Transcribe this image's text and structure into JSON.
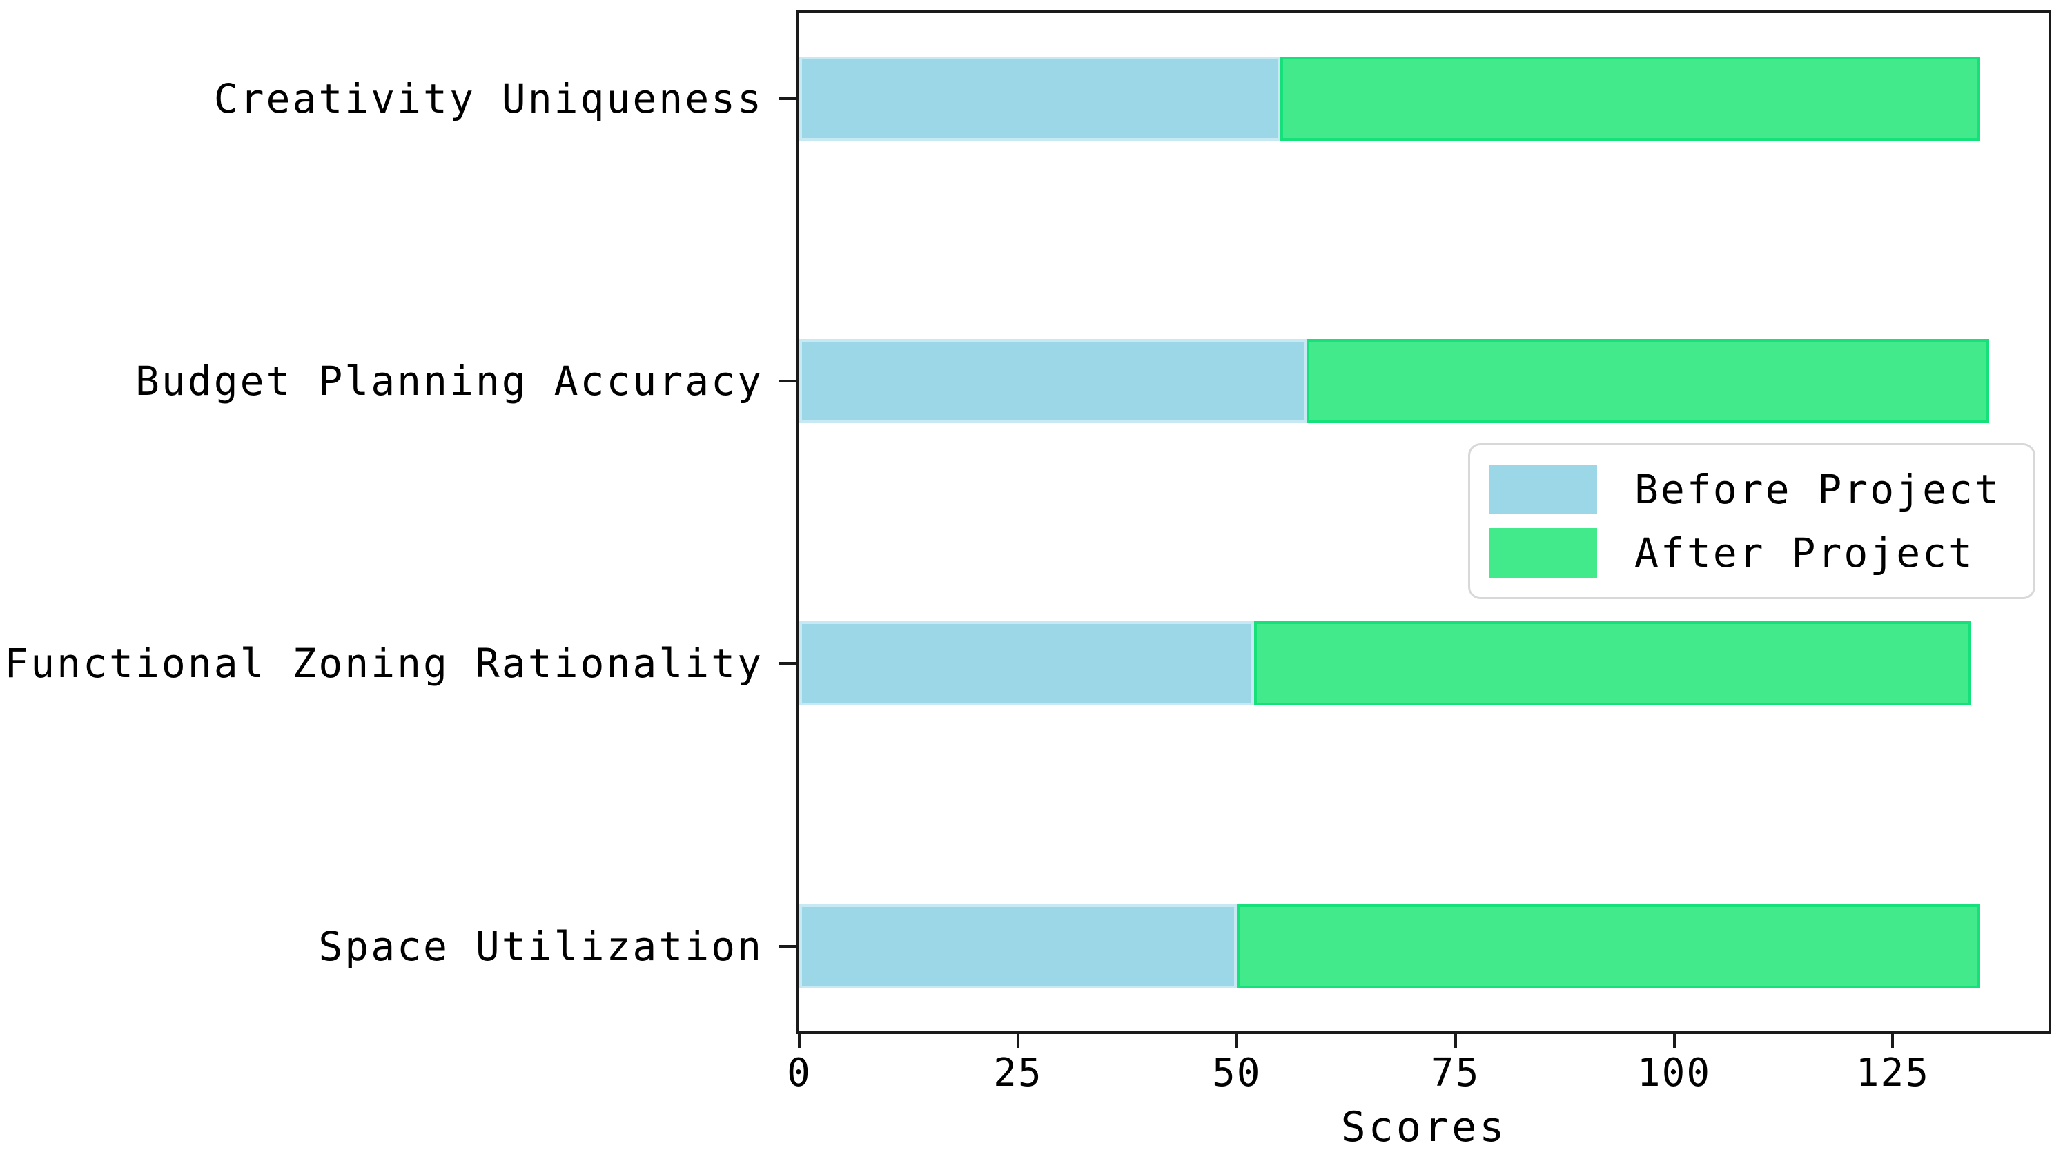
{
  "chart_data": {
    "type": "bar",
    "orientation": "horizontal",
    "stacked": true,
    "title": "",
    "xlabel": "Scores",
    "ylabel": "",
    "categories_top_to_bottom": [
      "Creativity Uniqueness",
      "Budget Planning Accuracy",
      "Functional Zoning Rationality",
      "Space Utilization"
    ],
    "series": [
      {
        "name": "Before Project",
        "color": "#9cd7e7",
        "edge_color": "#c6e9f3",
        "values": [
          55,
          58,
          52,
          50
        ]
      },
      {
        "name": "After Project",
        "color": "#43ea8c",
        "edge_color": "#15e07a",
        "values": [
          80,
          78,
          82,
          85
        ]
      }
    ],
    "stacked_totals": [
      135,
      136,
      134,
      135
    ],
    "x_ticks": [
      0,
      25,
      50,
      75,
      100,
      125
    ],
    "xlim": [
      0,
      142.8
    ],
    "grid": false,
    "legend_position": "center right",
    "frame_color": "#1a1a1a",
    "background_color": "#ffffff"
  }
}
